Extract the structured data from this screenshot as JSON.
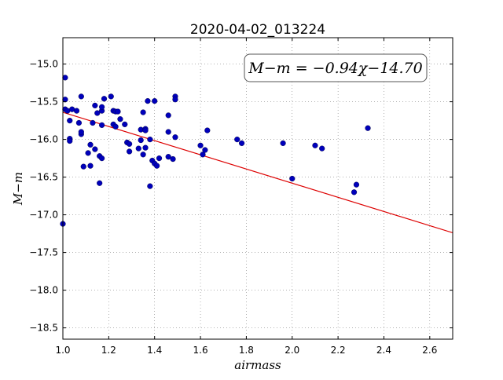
{
  "chart_data": {
    "type": "scatter",
    "title": "2020-04-02_013224",
    "xlabel": "airmass",
    "ylabel": "M−m",
    "xlim": [
      1.0,
      2.7
    ],
    "ylim": [
      -18.65,
      -14.65
    ],
    "y_inverted": true,
    "grid": true,
    "x_ticks": [
      1.0,
      1.2,
      1.4,
      1.6,
      1.8,
      2.0,
      2.2,
      2.4,
      2.6
    ],
    "x_tick_labels": [
      "1.0",
      "1.2",
      "1.4",
      "1.6",
      "1.8",
      "2.0",
      "2.2",
      "2.4",
      "2.6"
    ],
    "y_ticks": [
      -15.0,
      -15.5,
      -16.0,
      -16.5,
      -17.0,
      -17.5,
      -18.0,
      -18.5
    ],
    "y_tick_labels": [
      "−15.0",
      "−15.5",
      "−16.0",
      "−16.5",
      "−17.0",
      "−17.5",
      "−18.0",
      "−18.5"
    ],
    "annotation": "M−m = −0.94χ−14.70",
    "annotation_placement": "top-right",
    "fit": {
      "slope": -0.94,
      "intercept": -14.7,
      "color": "#dd0000"
    },
    "point_color": "#0000bb",
    "points": [
      [
        1.0,
        -17.12
      ],
      [
        1.01,
        -15.18
      ],
      [
        1.01,
        -15.47
      ],
      [
        1.01,
        -15.6
      ],
      [
        1.02,
        -15.62
      ],
      [
        1.03,
        -15.75
      ],
      [
        1.03,
        -15.99
      ],
      [
        1.03,
        -16.02
      ],
      [
        1.04,
        -15.6
      ],
      [
        1.06,
        -15.62
      ],
      [
        1.07,
        -15.78
      ],
      [
        1.08,
        -15.93
      ],
      [
        1.08,
        -15.9
      ],
      [
        1.08,
        -15.43
      ],
      [
        1.09,
        -16.36
      ],
      [
        1.11,
        -16.18
      ],
      [
        1.12,
        -16.35
      ],
      [
        1.12,
        -16.07
      ],
      [
        1.13,
        -15.78
      ],
      [
        1.14,
        -16.13
      ],
      [
        1.14,
        -15.55
      ],
      [
        1.15,
        -15.65
      ],
      [
        1.16,
        -16.22
      ],
      [
        1.16,
        -16.58
      ],
      [
        1.17,
        -16.25
      ],
      [
        1.17,
        -15.81
      ],
      [
        1.17,
        -15.62
      ],
      [
        1.17,
        -15.57
      ],
      [
        1.18,
        -15.46
      ],
      [
        1.21,
        -15.43
      ],
      [
        1.22,
        -15.62
      ],
      [
        1.22,
        -15.8
      ],
      [
        1.23,
        -15.83
      ],
      [
        1.23,
        -15.63
      ],
      [
        1.24,
        -15.63
      ],
      [
        1.25,
        -15.73
      ],
      [
        1.27,
        -15.8
      ],
      [
        1.28,
        -16.04
      ],
      [
        1.29,
        -16.06
      ],
      [
        1.29,
        -16.16
      ],
      [
        1.33,
        -16.12
      ],
      [
        1.34,
        -16.01
      ],
      [
        1.34,
        -15.87
      ],
      [
        1.35,
        -16.2
      ],
      [
        1.35,
        -15.64
      ],
      [
        1.36,
        -15.86
      ],
      [
        1.36,
        -15.88
      ],
      [
        1.36,
        -16.11
      ],
      [
        1.37,
        -15.49
      ],
      [
        1.38,
        -16.62
      ],
      [
        1.38,
        -16.0
      ],
      [
        1.39,
        -16.28
      ],
      [
        1.4,
        -15.49
      ],
      [
        1.4,
        -16.32
      ],
      [
        1.41,
        -16.35
      ],
      [
        1.42,
        -16.25
      ],
      [
        1.46,
        -16.23
      ],
      [
        1.46,
        -15.9
      ],
      [
        1.46,
        -15.68
      ],
      [
        1.48,
        -16.26
      ],
      [
        1.49,
        -15.43
      ],
      [
        1.49,
        -15.47
      ],
      [
        1.49,
        -15.97
      ],
      [
        1.6,
        -16.08
      ],
      [
        1.61,
        -16.2
      ],
      [
        1.62,
        -16.14
      ],
      [
        1.63,
        -15.88
      ],
      [
        1.76,
        -16.0
      ],
      [
        1.78,
        -16.05
      ],
      [
        1.96,
        -16.05
      ],
      [
        2.0,
        -16.52
      ],
      [
        2.1,
        -16.08
      ],
      [
        2.13,
        -16.12
      ],
      [
        2.27,
        -16.7
      ],
      [
        2.28,
        -16.6
      ],
      [
        2.33,
        -15.85
      ]
    ]
  }
}
